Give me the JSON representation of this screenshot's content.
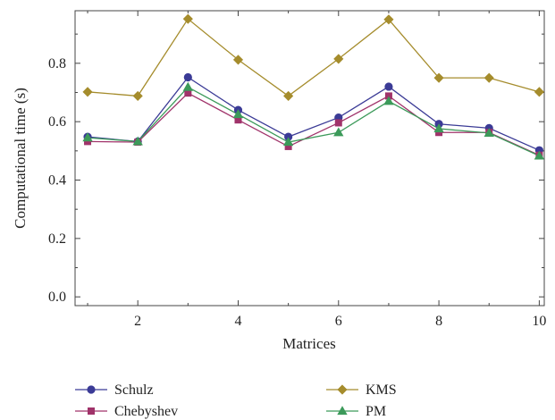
{
  "chart_data": {
    "type": "line",
    "title": "",
    "xlabel": "Matrices",
    "ylabel": "Computational time (s)",
    "x": [
      1,
      2,
      3,
      4,
      5,
      6,
      7,
      8,
      9,
      10
    ],
    "xlim": [
      0.75,
      10.1
    ],
    "ylim": [
      -0.03,
      0.98
    ],
    "xticks": [
      2,
      4,
      6,
      8,
      10
    ],
    "yticks": [
      0.0,
      0.2,
      0.4,
      0.6,
      0.8
    ],
    "xtick_labels": [
      "2",
      "4",
      "6",
      "8",
      "10"
    ],
    "ytick_labels": [
      "0.0",
      "0.2",
      "0.4",
      "0.6",
      "0.8"
    ],
    "grid": false,
    "legend_position": "bottom",
    "series": [
      {
        "name": "Schulz",
        "color": "#3b3b96",
        "marker": "circle",
        "values": [
          0.548,
          0.532,
          0.752,
          0.64,
          0.548,
          0.614,
          0.72,
          0.592,
          0.578,
          0.502
        ]
      },
      {
        "name": "Chebyshev",
        "color": "#a0336a",
        "marker": "square",
        "values": [
          0.532,
          0.53,
          0.698,
          0.606,
          0.515,
          0.596,
          0.688,
          0.563,
          0.563,
          0.485
        ]
      },
      {
        "name": "KMS",
        "color": "#a58c2c",
        "marker": "diamond",
        "values": [
          0.702,
          0.688,
          0.952,
          0.812,
          0.688,
          0.815,
          0.95,
          0.75,
          0.75,
          0.702
        ]
      },
      {
        "name": "PM",
        "color": "#3c9a5a",
        "marker": "triangle",
        "values": [
          0.545,
          0.532,
          0.718,
          0.625,
          0.53,
          0.563,
          0.67,
          0.576,
          0.561,
          0.483
        ]
      }
    ]
  }
}
